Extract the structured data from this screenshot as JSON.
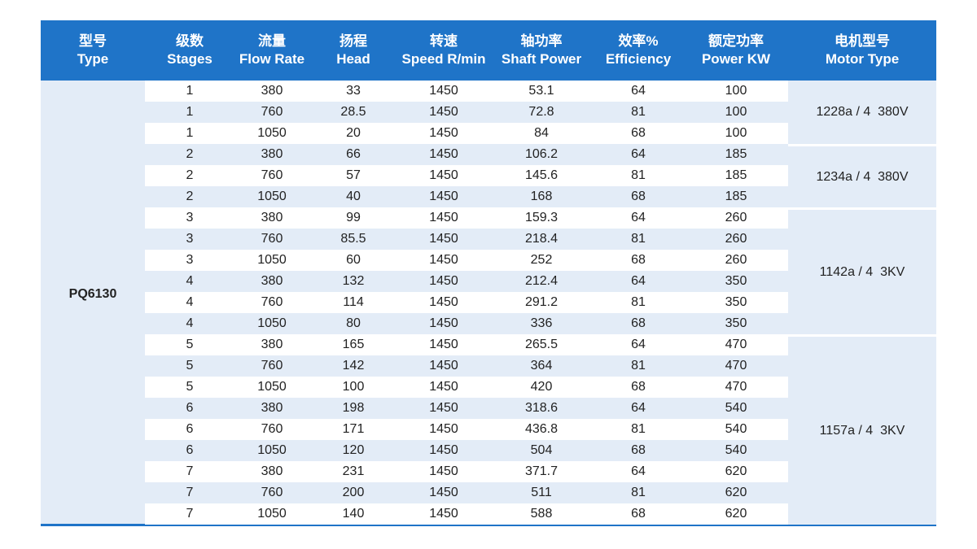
{
  "header": [
    {
      "zh": "型号",
      "en": "Type"
    },
    {
      "zh": "级数",
      "en": "Stages"
    },
    {
      "zh": "流量",
      "en": "Flow Rate"
    },
    {
      "zh": "扬程",
      "en": "Head"
    },
    {
      "zh": "转速",
      "en": "Speed R/min"
    },
    {
      "zh": "轴功率",
      "en": "Shaft Power"
    },
    {
      "zh": "效率%",
      "en": "Efficiency"
    },
    {
      "zh": "额定功率",
      "en": "Power KW"
    },
    {
      "zh": "电机型号",
      "en": "Motor Type"
    }
  ],
  "model": "PQ6130",
  "groups": [
    {
      "motor_type": "1228a / 4  380V",
      "rows": [
        [
          1,
          380,
          33,
          1450,
          53.1,
          64,
          100
        ],
        [
          1,
          760,
          28.5,
          1450,
          72.8,
          81,
          100
        ],
        [
          1,
          1050,
          20,
          1450,
          84,
          68,
          100
        ]
      ]
    },
    {
      "motor_type": "1234a / 4  380V",
      "rows": [
        [
          2,
          380,
          66,
          1450,
          106.2,
          64,
          185
        ],
        [
          2,
          760,
          57,
          1450,
          145.6,
          81,
          185
        ],
        [
          2,
          1050,
          40,
          1450,
          168,
          68,
          185
        ]
      ]
    },
    {
      "motor_type": "1142a / 4  3KV",
      "rows": [
        [
          3,
          380,
          99,
          1450,
          159.3,
          64,
          260
        ],
        [
          3,
          760,
          85.5,
          1450,
          218.4,
          81,
          260
        ],
        [
          3,
          1050,
          60,
          1450,
          252,
          68,
          260
        ],
        [
          4,
          380,
          132,
          1450,
          212.4,
          64,
          350
        ],
        [
          4,
          760,
          114,
          1450,
          291.2,
          81,
          350
        ],
        [
          4,
          1050,
          80,
          1450,
          336,
          68,
          350
        ]
      ]
    },
    {
      "motor_type": "1157a / 4  3KV",
      "rows": [
        [
          5,
          380,
          165,
          1450,
          265.5,
          64,
          470
        ],
        [
          5,
          760,
          142,
          1450,
          364,
          81,
          470
        ],
        [
          5,
          1050,
          100,
          1450,
          420,
          68,
          470
        ],
        [
          6,
          380,
          198,
          1450,
          318.6,
          64,
          540
        ],
        [
          6,
          760,
          171,
          1450,
          436.8,
          81,
          540
        ],
        [
          6,
          1050,
          120,
          1450,
          504,
          68,
          540
        ],
        [
          7,
          380,
          231,
          1450,
          371.7,
          64,
          620
        ],
        [
          7,
          760,
          200,
          1450,
          511,
          81,
          620
        ],
        [
          7,
          1050,
          140,
          1450,
          588,
          68,
          620
        ]
      ]
    }
  ]
}
